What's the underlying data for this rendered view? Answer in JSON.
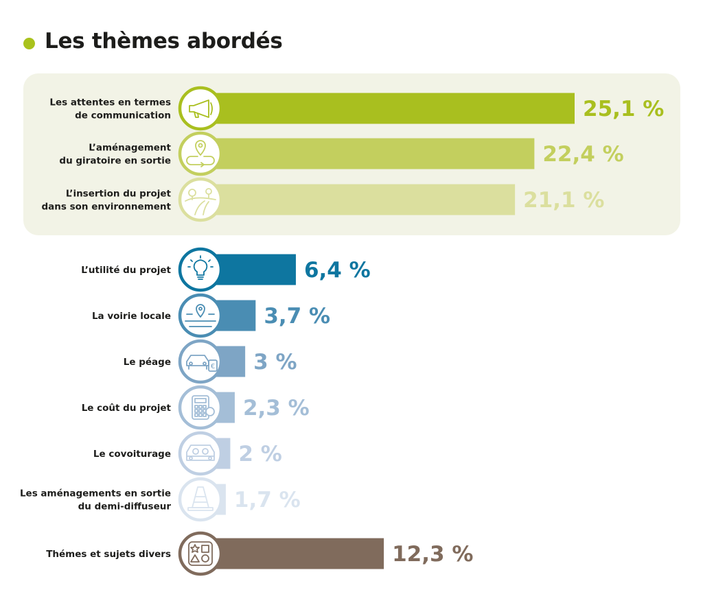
{
  "title": "Les thèmes abordés",
  "colors": {
    "accent_dot": "#a9c21d",
    "panel_bg": "#f2f3e6",
    "circle_fill": "#ffffff"
  },
  "chart_data": {
    "type": "bar",
    "orientation": "horizontal",
    "title": "Les thèmes abordés",
    "unit": "%",
    "xlim": [
      0,
      25.1
    ],
    "grid": false,
    "categories": [
      [
        "Les attentes en termes",
        "de communication"
      ],
      [
        "L’aménagement",
        "du giratoire en sortie"
      ],
      [
        "L’insertion du projet",
        "dans son environnement"
      ],
      [
        "L’utilité du projet"
      ],
      [
        "La voirie locale"
      ],
      [
        "Le péage"
      ],
      [
        "Le coût du projet"
      ],
      [
        "Le covoiturage"
      ],
      [
        "Les aménagements en sortie",
        "du demi-diffuseur"
      ],
      [
        "Thémes et sujets divers"
      ]
    ],
    "values": [
      25.1,
      22.4,
      21.1,
      6.4,
      3.7,
      3,
      2.3,
      2,
      1.7,
      12.3
    ],
    "value_labels": [
      "25,1 %",
      "22,4 %",
      "21,1 %",
      "6,4 %",
      "3,7 %",
      "3 %",
      "2,3 %",
      "2 %",
      "1,7 %",
      "12,3 %"
    ],
    "colors": [
      "#a9bf1f",
      "#c3cf5e",
      "#dbdf9e",
      "#0e76a0",
      "#4a8db3",
      "#7ea5c5",
      "#a4bed7",
      "#bfcfe3",
      "#dae4ef",
      "#806b5c"
    ],
    "icons": [
      "megaphone-icon",
      "map-pin-route-icon",
      "landscape-road-icon",
      "lightbulb-icon",
      "pin-road-icon",
      "car-toll-icon",
      "calculator-icon",
      "carpool-icon",
      "traffic-cone-icon",
      "shapes-icon"
    ],
    "highlighted_group": [
      0,
      1,
      2
    ]
  }
}
